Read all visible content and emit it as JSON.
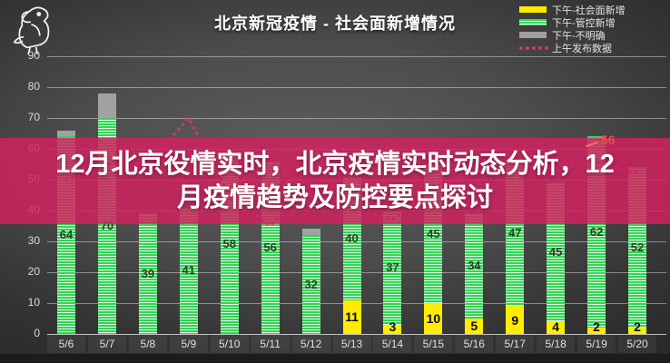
{
  "header": {
    "title": "北京新冠疫情 - 社会面新增情况"
  },
  "logo": {
    "description": "parrot-mascot-line-drawing"
  },
  "legend": {
    "items": [
      {
        "label": "下午-社会面新增",
        "swatch": "solid-yellow",
        "color": "#ffe900"
      },
      {
        "label": "下午-管控新增",
        "swatch": "striped-green",
        "color": "#3ed45e"
      },
      {
        "label": "下午-不明确",
        "swatch": "solid-gray",
        "color": "#9f9f9f"
      },
      {
        "label": "上午发布数据",
        "swatch": "dotted-pink",
        "color": "#d23b63"
      }
    ]
  },
  "overlay": {
    "title": "12月北京役情实时，北京疫情实时动态分析，12月疫情趋势及防控要点探讨",
    "title_lines": [
      "12月北京役情实时，北京疫情实时动态分析，12",
      "月疫情趋势及防控要点探讨"
    ],
    "band_color": "#d2205f"
  },
  "annotation": {
    "label": "56",
    "category": "5/19",
    "color": "#e85048"
  },
  "chart_data": {
    "type": "bar",
    "stacked": true,
    "title": "北京新冠疫情 - 社会面新增情况",
    "categories": [
      "5/6",
      "5/7",
      "5/8",
      "5/9",
      "5/10",
      "5/11",
      "5/12",
      "5/13",
      "5/14",
      "5/15",
      "5/16",
      "5/17",
      "5/18",
      "5/19",
      "5/20"
    ],
    "series": [
      {
        "name": "下午-社会面新增",
        "role": "yellow",
        "color": "#ffec00",
        "values": [
          0,
          0,
          0,
          0,
          0,
          0,
          0,
          11,
          3,
          10,
          5,
          9,
          4,
          2,
          2
        ]
      },
      {
        "name": "下午-管控新增",
        "role": "green",
        "color": "#38d158",
        "values": [
          64,
          70,
          39,
          41,
          58,
          56,
          32,
          40,
          37,
          45,
          34,
          47,
          45,
          62,
          52
        ]
      },
      {
        "name": "下午-不明确",
        "role": "gray",
        "color": "#a2a2a2",
        "values": [
          2,
          8,
          0,
          0,
          0,
          0,
          2,
          0,
          0,
          0,
          0,
          0,
          0,
          0,
          0
        ]
      },
      {
        "name": "上午发布数据",
        "role": "line",
        "type": "line",
        "style": "dotted",
        "color": "#d23b63",
        "values": [
          50,
          55,
          55,
          70,
          45,
          35,
          48,
          41,
          37,
          48,
          52,
          57,
          55,
          56,
          52
        ],
        "values_estimated": true,
        "labeled_point": {
          "category": "5/19",
          "value": 56
        }
      }
    ],
    "ylim": [
      0,
      90
    ],
    "yticks": [
      0,
      10,
      20,
      30,
      40,
      50,
      60,
      70,
      80,
      90
    ],
    "grid": true,
    "legend_position": "top-right"
  }
}
